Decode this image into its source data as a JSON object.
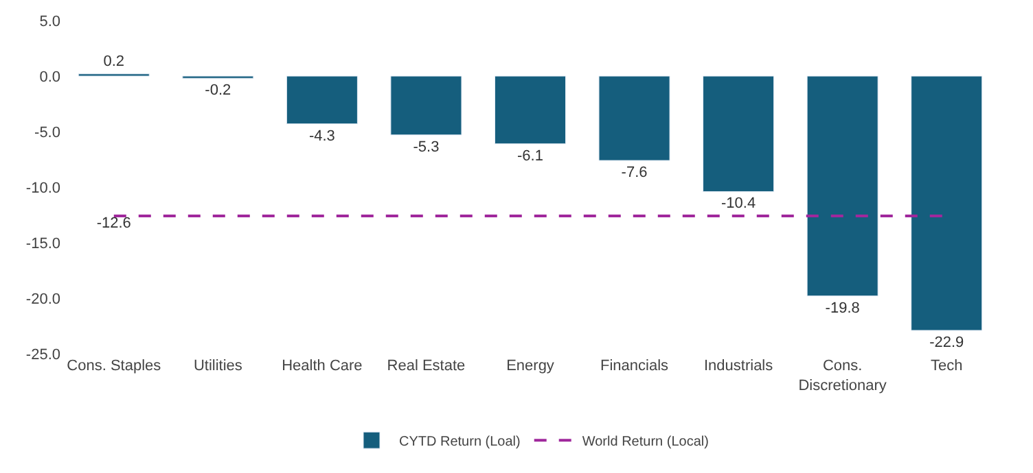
{
  "chart_data": {
    "type": "bar",
    "categories": [
      "Cons. Staples",
      "Utilities",
      "Health Care",
      "Real Estate",
      "Energy",
      "Financials",
      "Industrials",
      "Cons.\nDiscretionary",
      "Tech"
    ],
    "series": [
      {
        "name": "CYTD Return (Loal)",
        "color": "#155e7d",
        "values": [
          0.2,
          -0.2,
          -4.3,
          -5.3,
          -6.1,
          -7.6,
          -10.4,
          -19.8,
          -22.9
        ]
      },
      {
        "name": "World Return (Local)",
        "type": "line",
        "color": "#a0289c",
        "line_style": "dashed",
        "marker": "none",
        "values": [
          -12.6,
          -12.6,
          -12.6,
          -12.6,
          -12.6,
          -12.6,
          -12.6,
          -12.6,
          -12.6
        ],
        "value_labels": [
          "-12.6",
          null,
          null,
          null,
          null,
          null,
          null,
          null,
          null
        ]
      }
    ],
    "data_labels": true,
    "ylim": [
      -25,
      5
    ],
    "yticks": [
      {
        "value": 5,
        "label": "5.0"
      },
      {
        "value": 0,
        "label": "0.0"
      },
      {
        "value": -5,
        "label": "-5.0"
      },
      {
        "value": -10,
        "label": "-10.0"
      },
      {
        "value": -15,
        "label": "-15.0"
      },
      {
        "value": -20,
        "label": "-20.0"
      },
      {
        "value": -25,
        "label": "-25.0"
      }
    ],
    "legend": "bottom"
  }
}
